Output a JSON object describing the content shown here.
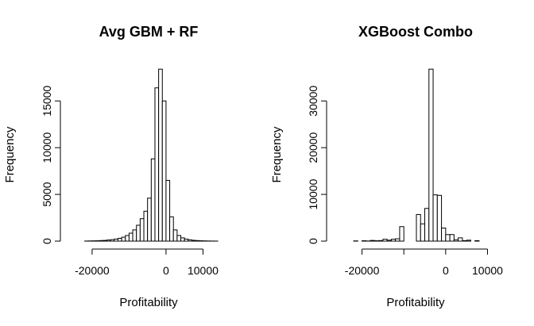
{
  "chart_data": [
    {
      "type": "bar",
      "title": "Avg GBM + RF",
      "xlabel": "Profitability",
      "ylabel": "Frequency",
      "x_ticks": [
        -20000,
        0,
        10000
      ],
      "x_tick_labels": [
        "-20000",
        "0",
        "10000"
      ],
      "x_axis_range": [
        -20000,
        10000
      ],
      "y_ticks": [
        0,
        5000,
        10000,
        15000
      ],
      "y_tick_labels": [
        "0",
        "5000",
        "10000",
        "15000"
      ],
      "y_axis_range": [
        0,
        15000
      ],
      "xlim": [
        -26000,
        17000
      ],
      "ylim": [
        0,
        18500
      ],
      "bin_width": 1000,
      "bin_start": -26000,
      "values": [
        0,
        0,
        0,
        0,
        10,
        20,
        30,
        40,
        60,
        80,
        120,
        160,
        220,
        300,
        420,
        600,
        850,
        1200,
        1700,
        2400,
        3200,
        4600,
        8800,
        16400,
        18400,
        15000,
        6500,
        2600,
        1200,
        600,
        350,
        220,
        140,
        90,
        60,
        40,
        25,
        15,
        10,
        5,
        0,
        0,
        0
      ],
      "grid": false,
      "legend": "none"
    },
    {
      "type": "bar",
      "title": "XGBoost Combo",
      "xlabel": "Profitability",
      "ylabel": "Frequency",
      "x_ticks": [
        -20000,
        -10000,
        0,
        10000
      ],
      "x_tick_labels": [
        "-20000",
        "",
        "0",
        "10000"
      ],
      "x_axis_range": [
        -20000,
        10000
      ],
      "y_ticks": [
        0,
        10000,
        20000,
        30000
      ],
      "y_tick_labels": [
        "0",
        "10000",
        "20000",
        "30000"
      ],
      "y_axis_range": [
        0,
        30000
      ],
      "xlim": [
        -26000,
        12000
      ],
      "ylim": [
        0,
        37000
      ],
      "bin_width": 1000,
      "bin_start": -26000,
      "values": [
        0,
        0,
        0,
        0,
        50,
        0,
        80,
        30,
        150,
        80,
        120,
        400,
        200,
        400,
        500,
        3100,
        0,
        0,
        0,
        5700,
        3700,
        7000,
        36800,
        9900,
        9800,
        2800,
        1400,
        1400,
        300,
        700,
        100,
        200,
        0,
        100,
        0,
        0,
        0,
        0
      ],
      "grid": false,
      "legend": "none"
    }
  ]
}
